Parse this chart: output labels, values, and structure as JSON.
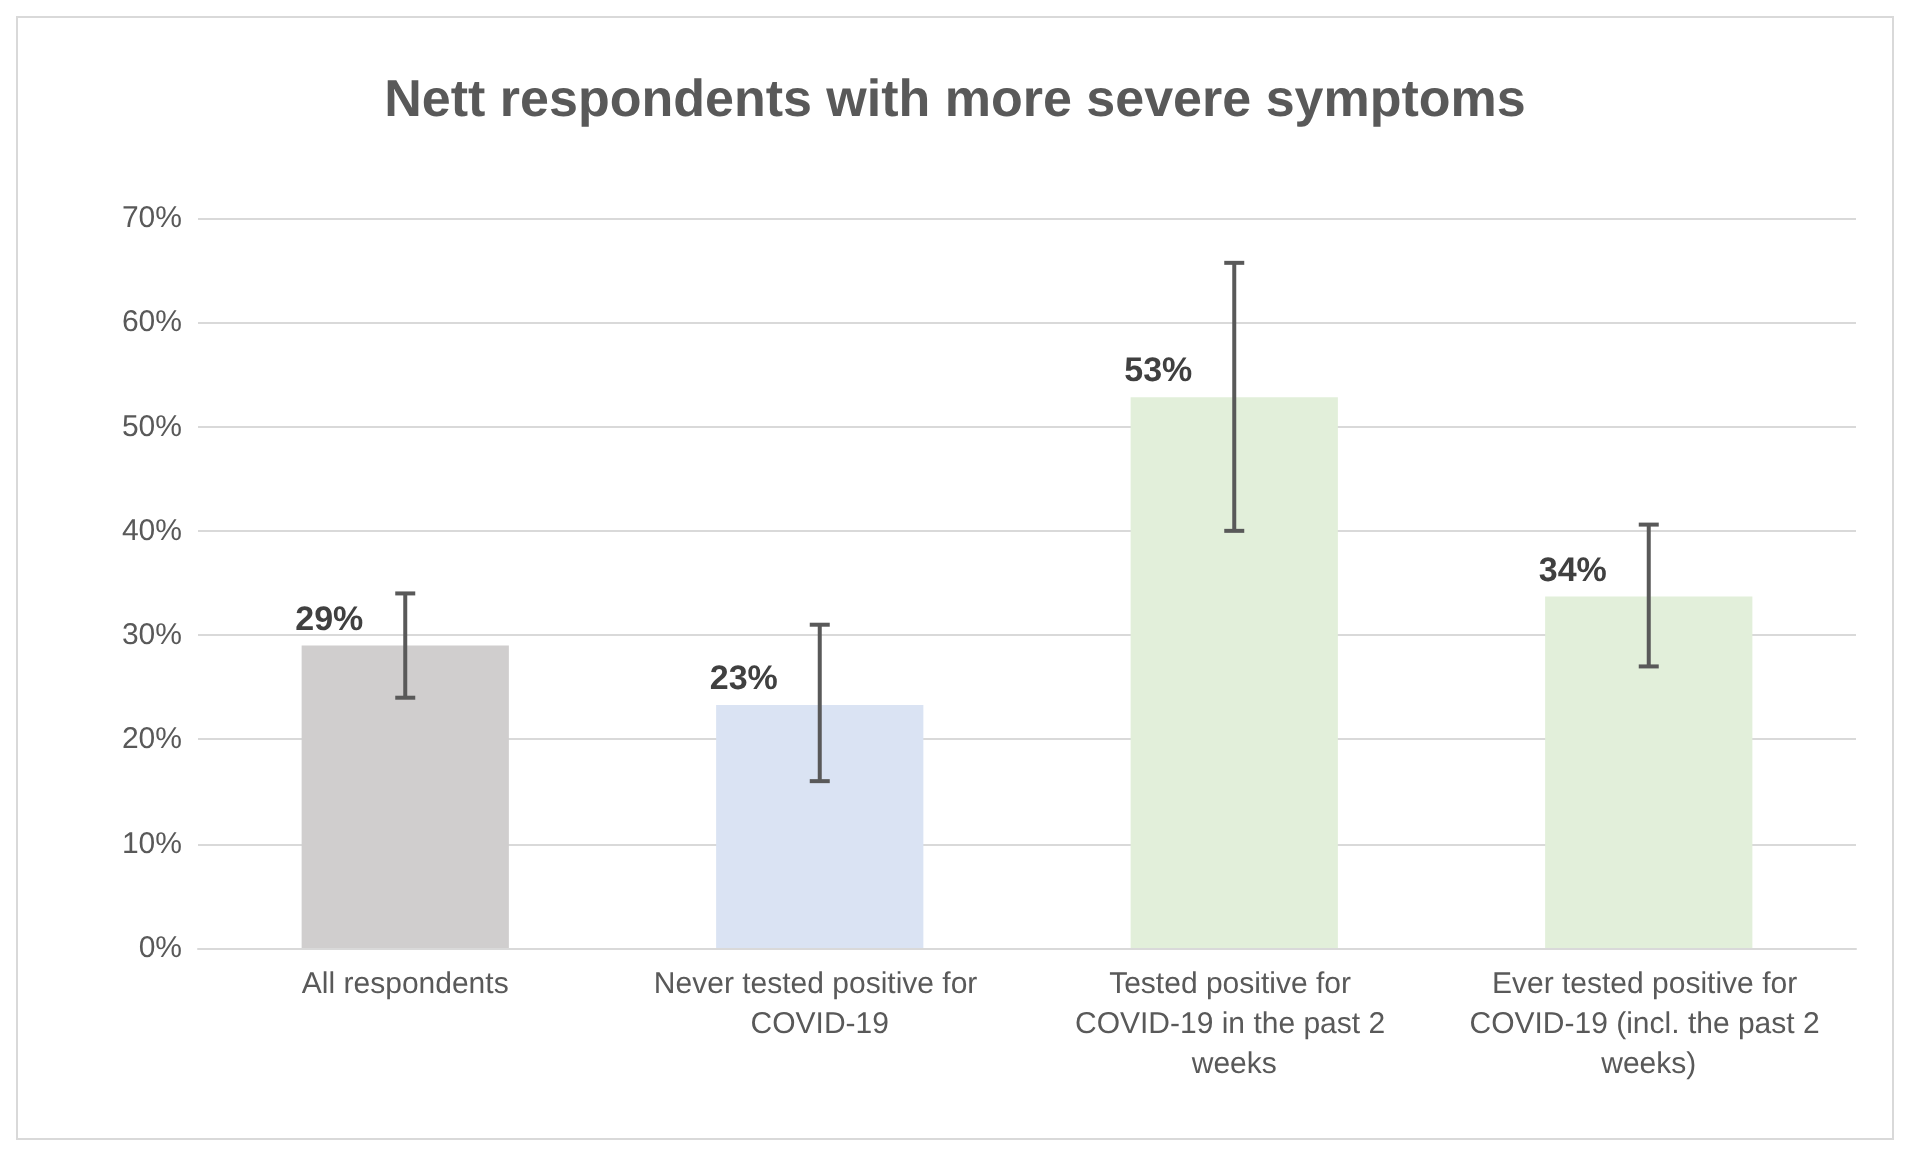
{
  "chart_data": {
    "type": "bar",
    "title": "Nett respondents with more severe symptoms",
    "categories": [
      "All respondents",
      "Never tested positive for COVID-19",
      "Tested positive for COVID-19 in the past 2 weeks",
      "Ever tested positive for COVID-19 (incl. the past 2 weeks)"
    ],
    "values": [
      29,
      23.3,
      52.8,
      33.7
    ],
    "colors": [
      "#d0cece",
      "#dae3f3",
      "#e2efda",
      "#e2efda"
    ],
    "value_labels": [
      "29%",
      "23%",
      "53%",
      "34%"
    ],
    "errors": [
      [
        24,
        34
      ],
      [
        16,
        31
      ],
      [
        40,
        65.7
      ],
      [
        27,
        40.6
      ]
    ],
    "ylim": [
      0,
      70
    ],
    "yticks": [
      {
        "value": 0,
        "label": "0%"
      },
      {
        "value": 10,
        "label": "10%"
      },
      {
        "value": 20,
        "label": "20%"
      },
      {
        "value": 30,
        "label": "30%"
      },
      {
        "value": 40,
        "label": "40%"
      },
      {
        "value": 50,
        "label": "50%"
      },
      {
        "value": 60,
        "label": "60%"
      },
      {
        "value": 70,
        "label": "70%"
      }
    ],
    "grid": "y"
  }
}
